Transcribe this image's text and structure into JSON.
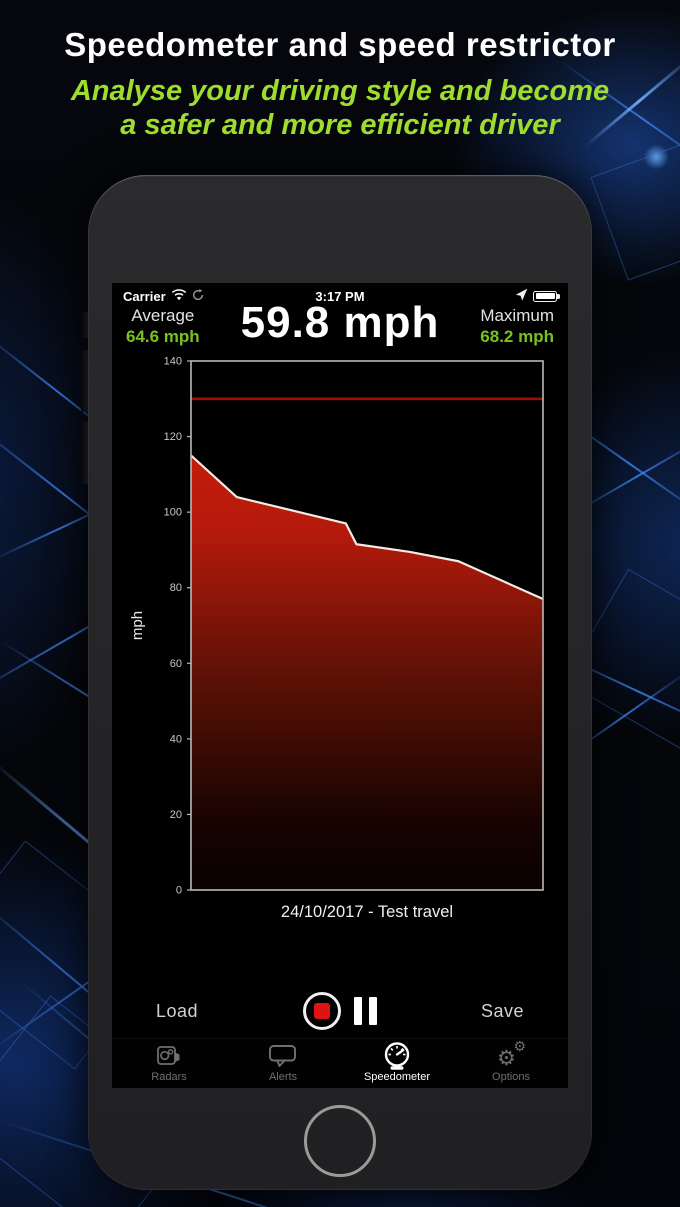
{
  "header": {
    "title": "Speedometer and speed restrictor",
    "subtitle_line1": "Analyse your driving style and become",
    "subtitle_line2": "a safer and more efficient driver",
    "subtitle_color": "#9edc2d"
  },
  "status_bar": {
    "carrier": "Carrier",
    "time": "3:17 PM"
  },
  "stats": {
    "average_label": "Average",
    "average_value": "64.6 mph",
    "current_speed": "59.8 mph",
    "maximum_label": "Maximum",
    "maximum_value": "68.2 mph",
    "accent_green": "#78c21f"
  },
  "chart_data": {
    "type": "area",
    "title": "",
    "xlabel": "24/10/2017 - Test travel",
    "ylabel": "mph",
    "ylim": [
      0,
      140
    ],
    "yticks": [
      0,
      20,
      40,
      60,
      80,
      100,
      120,
      140
    ],
    "grid": false,
    "legend": false,
    "limit_line": {
      "value": 130,
      "color": "#a30d08"
    },
    "series": [
      {
        "name": "speed",
        "x": [
          0,
          0.13,
          0.44,
          0.47,
          0.62,
          0.76,
          1.0
        ],
        "values": [
          115,
          104,
          97,
          91.5,
          89.5,
          87,
          77
        ]
      }
    ],
    "area_top_color": "#c41c0c",
    "area_bottom_color": "#0a0100",
    "line_color": "#f3ece4",
    "frame_color": "#b9b9b9",
    "tick_color": "#c9c9c9"
  },
  "controls": {
    "load_label": "Load",
    "save_label": "Save"
  },
  "tab_bar": {
    "tabs": [
      {
        "label": "Radars",
        "icon": "radar-camera-icon",
        "active": false
      },
      {
        "label": "Alerts",
        "icon": "alerts-bubble-icon",
        "active": false
      },
      {
        "label": "Speedometer",
        "icon": "speedometer-gauge-icon",
        "active": true
      },
      {
        "label": "Options",
        "icon": "options-gears-icon",
        "active": false
      }
    ],
    "gear_glyph": "⚙"
  }
}
